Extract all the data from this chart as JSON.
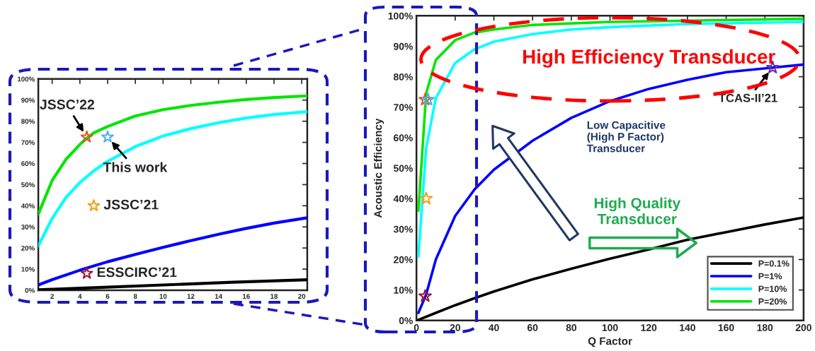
{
  "chart_data": [
    {
      "type": "line",
      "xlim": [
        1,
        20.4
      ],
      "ylim": [
        0,
        100
      ],
      "xticks": [
        2,
        4,
        6,
        8,
        10,
        12,
        14,
        16,
        18,
        20
      ],
      "yticks": [
        {
          "value": 0,
          "label": "0%"
        },
        {
          "value": 10,
          "label": "10%"
        },
        {
          "value": 20,
          "label": "20%"
        },
        {
          "value": 30,
          "label": "30%"
        },
        {
          "value": 40,
          "label": "40%"
        },
        {
          "value": 50,
          "label": "50%"
        },
        {
          "value": 60,
          "label": "60%"
        },
        {
          "value": 70,
          "label": "70%"
        },
        {
          "value": 80,
          "label": "80%"
        },
        {
          "value": 90,
          "label": "90%"
        },
        {
          "value": 100,
          "label": "100%"
        }
      ],
      "grid": false,
      "legend": false,
      "series": [
        {
          "color": "#000000",
          "x": [
            1,
            5,
            10,
            15,
            20.4
          ],
          "values": [
            0.2,
            1.2,
            2.5,
            3.8,
            5
          ]
        },
        {
          "color": "#0000ff",
          "x": [
            1,
            2,
            4,
            6,
            8,
            10,
            12,
            14,
            16,
            18,
            20.4
          ],
          "values": [
            2.5,
            5,
            9.5,
            13.5,
            17,
            20.3,
            23.5,
            26.5,
            29.3,
            31.8,
            34.3
          ]
        },
        {
          "color": "#00ffff",
          "x": [
            1,
            2,
            3,
            4,
            5,
            6,
            8,
            10,
            12,
            14,
            16,
            18,
            20.4
          ],
          "values": [
            21,
            34,
            44,
            51,
            56.5,
            61,
            68,
            73,
            76.5,
            79.3,
            81.5,
            83.2,
            84.5
          ]
        },
        {
          "color": "#00e600",
          "x": [
            1,
            2,
            3,
            4,
            4.5,
            5,
            6,
            8,
            10,
            12,
            14,
            16,
            18,
            20.4
          ],
          "values": [
            36,
            52,
            62,
            69,
            72,
            74.5,
            77.5,
            82.5,
            85.5,
            87.5,
            89,
            90.3,
            91.2,
            92
          ]
        },
        {
          "type": "scatter",
          "marker": "star",
          "x": [
            4.5,
            6,
            5,
            4.5
          ],
          "values": [
            72.5,
            72.5,
            40,
            8
          ],
          "colors": [
            "#e0582a",
            "#4fb0e8",
            "#f0a020",
            "#a01830"
          ]
        }
      ],
      "annotations": [
        {
          "text": "JSSC’22",
          "x": 4.5,
          "y": 72.5
        },
        {
          "text": "This work",
          "x": 6,
          "y": 72.5
        },
        {
          "text": "JSSC’21",
          "x": 5,
          "y": 40
        },
        {
          "text": "ESSCIRC’21",
          "x": 4.5,
          "y": 8
        }
      ]
    },
    {
      "type": "line",
      "xlim": [
        0,
        200
      ],
      "ylim": [
        0,
        100
      ],
      "xticks": [
        0,
        20,
        40,
        60,
        80,
        100,
        120,
        140,
        160,
        180,
        200
      ],
      "yticks": [
        {
          "value": 0,
          "label": "0%"
        },
        {
          "value": 10,
          "label": "10%"
        },
        {
          "value": 20,
          "label": "20%"
        },
        {
          "value": 30,
          "label": "30%"
        },
        {
          "value": 40,
          "label": "40%"
        },
        {
          "value": 50,
          "label": "50%"
        },
        {
          "value": 60,
          "label": "60%"
        },
        {
          "value": 70,
          "label": "70%"
        },
        {
          "value": 80,
          "label": "80%"
        },
        {
          "value": 90,
          "label": "90%"
        },
        {
          "value": 100,
          "label": "100%"
        }
      ],
      "xlabel": "Q Factor",
      "ylabel": "Acoustic Efficiency",
      "grid": false,
      "legend": "bottom right",
      "series": [
        {
          "name": "P=0.1%",
          "color": "#000000",
          "x": [
            1,
            10,
            20,
            30,
            40,
            60,
            80,
            100,
            120,
            140,
            160,
            180,
            200
          ],
          "values": [
            0.2,
            2.5,
            5,
            7.3,
            9.5,
            13.5,
            17,
            20.3,
            23.3,
            26.5,
            29,
            31.5,
            33.8
          ]
        },
        {
          "name": "P=1%",
          "color": "#0000ff",
          "x": [
            1,
            5,
            10,
            20,
            30,
            40,
            60,
            80,
            100,
            120,
            140,
            160,
            184,
            200
          ],
          "values": [
            2.5,
            8.5,
            20,
            34.3,
            43,
            49.5,
            59,
            66.5,
            72,
            76,
            79,
            81.5,
            83,
            84
          ]
        },
        {
          "name": "P=10%",
          "color": "#00ffff",
          "x": [
            1,
            5,
            10,
            20,
            30,
            40,
            60,
            80,
            100,
            140,
            200
          ],
          "values": [
            21,
            56.5,
            73,
            84.5,
            89,
            91.5,
            94,
            95.5,
            96.3,
            97.3,
            98
          ]
        },
        {
          "name": "P=20%",
          "color": "#00e600",
          "x": [
            1,
            5,
            10,
            20,
            30,
            40,
            60,
            100,
            200
          ],
          "values": [
            36,
            74.5,
            85.5,
            92,
            94.5,
            95.5,
            97,
            98,
            99
          ]
        },
        {
          "type": "scatter",
          "marker": "star",
          "x": [
            4.5,
            6,
            5,
            4.5,
            184
          ],
          "values": [
            72.5,
            72.5,
            40,
            8,
            83
          ],
          "colors": [
            "#e0582a",
            "#4fb0e8",
            "#f0a020",
            "#a01830",
            "#7030a0"
          ]
        }
      ],
      "annotations": [
        {
          "text": "TCAS-II’21",
          "x": 184,
          "y": 83
        },
        "High Efficiency Transducer",
        "Low Capacitive\n(High P Factor)\nTransducer",
        "High Quality\nTransducer"
      ]
    }
  ]
}
